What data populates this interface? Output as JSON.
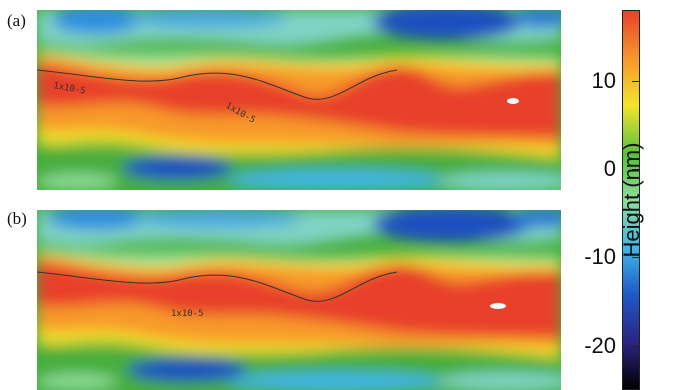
{
  "panels": [
    {
      "label": "(a)",
      "contour_labels": [
        "1x10-5",
        "1x10-5"
      ]
    },
    {
      "label": "(b)",
      "contour_labels": [
        "1x10-5"
      ]
    }
  ],
  "colorbar": {
    "label": "Height (nm)",
    "ticks": [
      "10",
      "0",
      "-10",
      "-20"
    ]
  },
  "chart_data": {
    "type": "heatmap",
    "title": "",
    "colorbar_label": "Height (nm)",
    "colorbar_ticks": [
      10,
      0,
      -10,
      -20
    ],
    "colorbar_range": [
      -25,
      18
    ],
    "colormap": [
      "#000000",
      "#2a2380",
      "#1f58c9",
      "#3fb5e8",
      "#8fdc9a",
      "#56c03e",
      "#f2e52c",
      "#f79a2c",
      "#e8412a"
    ],
    "panels": [
      "(a)",
      "(b)"
    ]
  }
}
